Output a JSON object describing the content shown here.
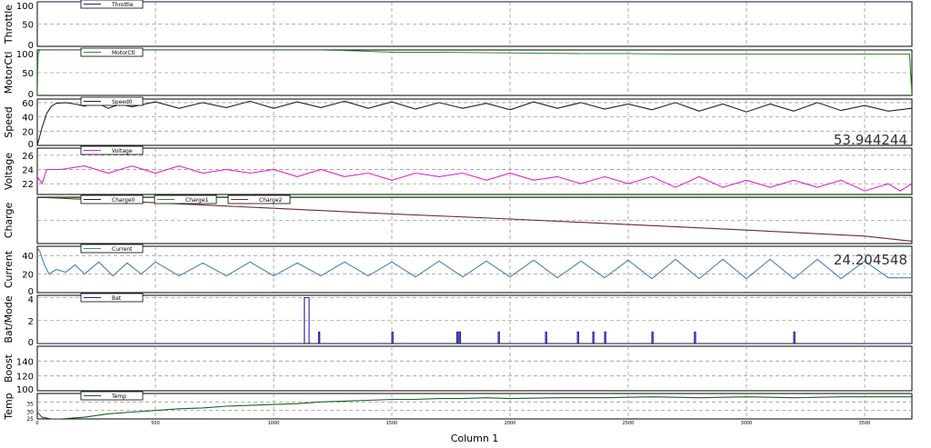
{
  "chart_data": {
    "type": "line",
    "xlabel": "Column 1",
    "xlim": [
      0,
      3700
    ],
    "xticks": [
      "0",
      "500",
      "1000",
      "1500",
      "2000",
      "2500",
      "3000",
      "3500"
    ],
    "panels": [
      {
        "id": "throttle",
        "ylabel": "Throttle",
        "ylim": [
          0,
          100
        ],
        "yticks": [
          "0",
          "50",
          "100"
        ],
        "series": [
          {
            "name": "Throttle",
            "color": "#1f1fa0",
            "x": [
              0,
              5,
              3700
            ],
            "y": [
              100,
              100,
              100
            ]
          }
        ]
      },
      {
        "id": "motorctl",
        "ylabel": "MotorCtl",
        "ylim": [
          0,
          100
        ],
        "yticks": [
          "0",
          "50",
          "100"
        ],
        "series": [
          {
            "name": "MotorCtl",
            "color": "#2e8b2e",
            "x": [
              0,
              3,
              10,
              60,
              200,
              400,
              600,
              800,
              1000,
              1200,
              1350,
              1500,
              1700,
              1900,
              2100,
              2300,
              2500,
              2700,
              2900,
              3100,
              3300,
              3500,
              3690,
              3700
            ],
            "y": [
              0,
              90,
              100,
              100,
              100,
              100,
              100,
              100,
              100,
              100,
              98,
              95,
              95,
              94,
              93,
              92,
              92,
              91,
              91,
              91,
              91,
              91,
              91,
              0
            ]
          }
        ]
      },
      {
        "id": "speed",
        "ylabel": "Speed",
        "ylim": [
          0,
          65
        ],
        "yticks": [
          "0",
          "20",
          "40",
          "60"
        ],
        "series": [
          {
            "name": "Speed0",
            "color": "#222222",
            "x": [
              0,
              20,
              40,
              60,
              80,
              120,
              160,
              200,
              250,
              300,
              350,
              400,
              500,
              600,
              700,
              800,
              900,
              1000,
              1100,
              1200,
              1300,
              1400,
              1500,
              1600,
              1700,
              1800,
              1900,
              2000,
              2100,
              2200,
              2300,
              2400,
              2500,
              2600,
              2700,
              2800,
              2900,
              3000,
              3100,
              3200,
              3300,
              3400,
              3500,
              3600,
              3700
            ],
            "y": [
              0,
              25,
              45,
              55,
              59,
              60,
              58,
              55,
              60,
              52,
              58,
              54,
              61,
              52,
              60,
              53,
              62,
              52,
              61,
              53,
              62,
              52,
              61,
              51,
              60,
              52,
              59,
              50,
              61,
              52,
              60,
              51,
              58,
              50,
              60,
              48,
              58,
              47,
              58,
              48,
              60,
              49,
              56,
              48,
              52
            ]
          }
        ],
        "readout": "53.944244"
      },
      {
        "id": "voltage",
        "ylabel": "Voltage",
        "ylim": [
          20.5,
          27
        ],
        "yticks": [
          "22",
          "24",
          "26"
        ],
        "series": [
          {
            "name": "Voltage",
            "color": "#dd22dd",
            "x": [
              0,
              20,
              40,
              100,
              200,
              300,
              400,
              500,
              600,
              700,
              800,
              900,
              1000,
              1100,
              1200,
              1300,
              1400,
              1500,
              1600,
              1700,
              1800,
              1900,
              2000,
              2100,
              2200,
              2300,
              2400,
              2500,
              2600,
              2700,
              2800,
              2900,
              3000,
              3100,
              3200,
              3300,
              3400,
              3500,
              3600,
              3650,
              3700
            ],
            "y": [
              23,
              22,
              24,
              24,
              24.5,
              23.5,
              24.5,
              23.5,
              24.5,
              23.5,
              24,
              23.5,
              24,
              23,
              24,
              23,
              23.5,
              22.5,
              23.5,
              23,
              23.5,
              22.5,
              23.5,
              22.5,
              23,
              22,
              23,
              22,
              23,
              21.5,
              23,
              21.5,
              22.5,
              21.5,
              22.5,
              21.5,
              22.5,
              21,
              22,
              21,
              22
            ]
          }
        ]
      },
      {
        "id": "charge",
        "ylabel": "Charge",
        "ylim": [
          0,
          100
        ],
        "yticks": [],
        "series": [
          {
            "name": "Charge0",
            "color": "#222222",
            "x": [
              0,
              3700
            ],
            "y": [
              100,
              100
            ]
          },
          {
            "name": "Charge1",
            "color": "#2e8b2e",
            "x": [
              0,
              3700
            ],
            "y": [
              99,
              99
            ]
          },
          {
            "name": "Charge2",
            "color": "#6b2a2a",
            "x": [
              0,
              500,
              1000,
              1500,
              2000,
              2500,
              3000,
              3500,
              3700
            ],
            "y": [
              100,
              88,
              76,
              64,
              53,
              41,
              29,
              16,
              5
            ]
          }
        ]
      },
      {
        "id": "current",
        "ylabel": "Current",
        "ylim": [
          0,
          50
        ],
        "yticks": [
          "0",
          "20",
          "40"
        ],
        "series": [
          {
            "name": "Current",
            "color": "#4682b4",
            "x": [
              0,
              10,
              30,
              50,
              80,
              120,
              160,
              200,
              260,
              320,
              380,
              440,
              500,
              600,
              700,
              800,
              900,
              1000,
              1100,
              1200,
              1300,
              1400,
              1500,
              1600,
              1700,
              1800,
              1900,
              2000,
              2100,
              2200,
              2300,
              2400,
              2500,
              2600,
              2700,
              2800,
              2900,
              3000,
              3100,
              3200,
              3300,
              3400,
              3500,
              3600,
              3700
            ],
            "y": [
              48,
              45,
              30,
              20,
              25,
              22,
              30,
              20,
              33,
              18,
              32,
              20,
              33,
              18,
              32,
              18,
              33,
              18,
              32,
              18,
              33,
              18,
              33,
              17,
              34,
              17,
              34,
              17,
              35,
              16,
              34,
              16,
              35,
              15,
              36,
              15,
              36,
              15,
              36,
              15,
              36,
              15,
              34,
              16,
              16
            ]
          }
        ],
        "readout": "24.204548"
      },
      {
        "id": "batmode",
        "ylabel": "Bat/Mode",
        "ylim": [
          0,
          4.2
        ],
        "yticks": [
          "0",
          "2",
          "4"
        ],
        "series": [
          {
            "name": "Bat",
            "color": "#1f1fa0",
            "x": [
              0,
              1130,
              1130,
              1150,
              1150,
              1190,
              1190,
              1195,
              1195,
              1500,
              1500,
              1505,
              1505,
              1775,
              1775,
              1780,
              1780,
              1785,
              1785,
              1790,
              1790,
              1950,
              1950,
              1955,
              1955,
              2150,
              2150,
              2155,
              2155,
              2285,
              2285,
              2290,
              2290,
              2350,
              2350,
              2355,
              2355,
              2400,
              2400,
              2405,
              2405,
              2600,
              2600,
              2605,
              2605,
              2780,
              2780,
              2785,
              2785,
              3200,
              3200,
              3205,
              3205,
              3700
            ],
            "y": [
              0,
              0,
              4,
              4,
              0,
              0,
              1,
              1,
              0,
              0,
              1,
              1,
              0,
              0,
              1,
              1,
              0,
              0,
              1,
              1,
              0,
              0,
              1,
              1,
              0,
              0,
              1,
              1,
              0,
              0,
              1,
              1,
              0,
              0,
              1,
              1,
              0,
              0,
              1,
              1,
              0,
              0,
              1,
              1,
              0,
              0,
              1,
              1,
              0,
              0,
              1,
              1,
              0,
              0
            ]
          }
        ]
      },
      {
        "id": "boost",
        "ylabel": "Boost",
        "ylim": [
          100,
          160
        ],
        "yticks": [
          "100",
          "120",
          "140"
        ],
        "series": []
      },
      {
        "id": "temp",
        "ylabel": "Temp",
        "ylim": [
          25,
          40
        ],
        "yticks": [
          "25",
          "30",
          "35"
        ],
        "series": [
          {
            "name": "Temp",
            "color": "#1f5f1f",
            "x": [
              0,
              20,
              60,
              100,
              200,
              300,
              400,
              500,
              600,
              700,
              800,
              900,
              1000,
              1100,
              1200,
              1300,
              1400,
              1500,
              1600,
              1700,
              1800,
              1900,
              2000,
              2200,
              2400,
              2600,
              2800,
              3000,
              3200,
              3400,
              3600,
              3700
            ],
            "y": [
              29,
              26,
              25,
              25,
              26,
              28,
              29,
              30,
              31,
              31.5,
              32.5,
              33,
              33.5,
              34,
              35,
              35.5,
              36,
              36.5,
              36.5,
              37,
              37,
              37.5,
              37,
              37.5,
              37.5,
              38,
              37.5,
              38,
              37.5,
              38,
              38,
              38
            ]
          }
        ]
      }
    ]
  }
}
